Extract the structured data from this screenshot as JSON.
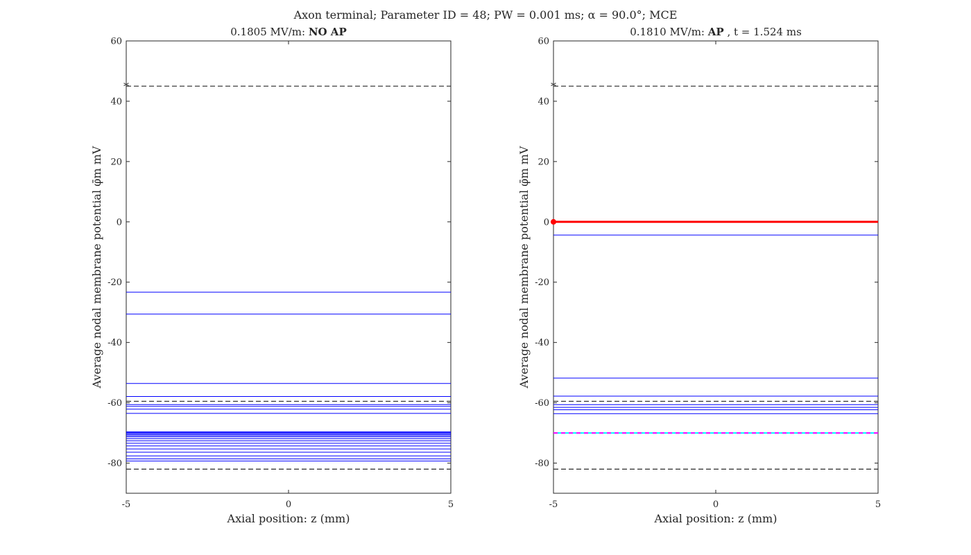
{
  "figure": {
    "suptitle": "Axon terminal; Parameter ID = 48; PW = 0.001 ms; α = 90.0°; MCE"
  },
  "chart_data": [
    {
      "type": "line",
      "title": "0.1805 MV/m: NO AP",
      "title_parts": {
        "field": "0.1805 MV/m:",
        "status": "NO AP",
        "extra": ""
      },
      "xlabel": "Axial position: z (mm)",
      "ylabel": "Average nodal membrane potential φ̄m mV",
      "xlim": [
        -5,
        5
      ],
      "ylim": [
        -90,
        60
      ],
      "xticks": [
        -5,
        0,
        5
      ],
      "yticks": [
        -80,
        -60,
        -40,
        -20,
        0,
        20,
        40,
        60
      ],
      "grid": false,
      "reference_lines": {
        "color": "#262626",
        "style": "dashed",
        "values": [
          45,
          -59.5,
          -82
        ]
      },
      "reference_marker": {
        "x": -5,
        "y": 45,
        "symbol": "*"
      },
      "trace_color": "#0000ff",
      "traces_mV": [
        -23.3,
        -30.6,
        -53.6,
        -57.9,
        -60.6,
        -61.2,
        -62.1,
        -63.5,
        -69.6,
        -69.9,
        -70.2,
        -70.5,
        -70.9,
        -71.3,
        -71.9,
        -72.6,
        -73.4,
        -74.3,
        -75.3,
        -76.4,
        -77.6,
        -78.6,
        -79.3
      ],
      "highlight": null
    },
    {
      "type": "line",
      "title": "0.1810 MV/m: AP, t = 1.524 ms",
      "title_parts": {
        "field": "0.1810 MV/m:",
        "status": "AP",
        "extra": ", t = 1.524 ms"
      },
      "xlabel": "Axial position: z (mm)",
      "ylabel": "Average nodal membrane potential φ̄m mV",
      "xlim": [
        -5,
        5
      ],
      "ylim": [
        -90,
        60
      ],
      "xticks": [
        -5,
        0,
        5
      ],
      "yticks": [
        -80,
        -60,
        -40,
        -20,
        0,
        20,
        40,
        60
      ],
      "grid": false,
      "reference_lines": {
        "color": "#262626",
        "style": "dashed",
        "values": [
          45,
          -59.5,
          -82
        ]
      },
      "reference_marker": {
        "x": -5,
        "y": 45,
        "symbol": "*"
      },
      "trace_color": "#0000ff",
      "traces_mV": [
        -4.4,
        -51.8,
        -57.8,
        -60.6,
        -61.5,
        -62.3,
        -63.6
      ],
      "highlight": {
        "ap_line": {
          "y": 0,
          "color": "#ff0000",
          "marker_x": -5
        },
        "rest_line": {
          "y": -70,
          "colors": [
            "#00ffff",
            "#ff00ff"
          ]
        }
      }
    }
  ]
}
